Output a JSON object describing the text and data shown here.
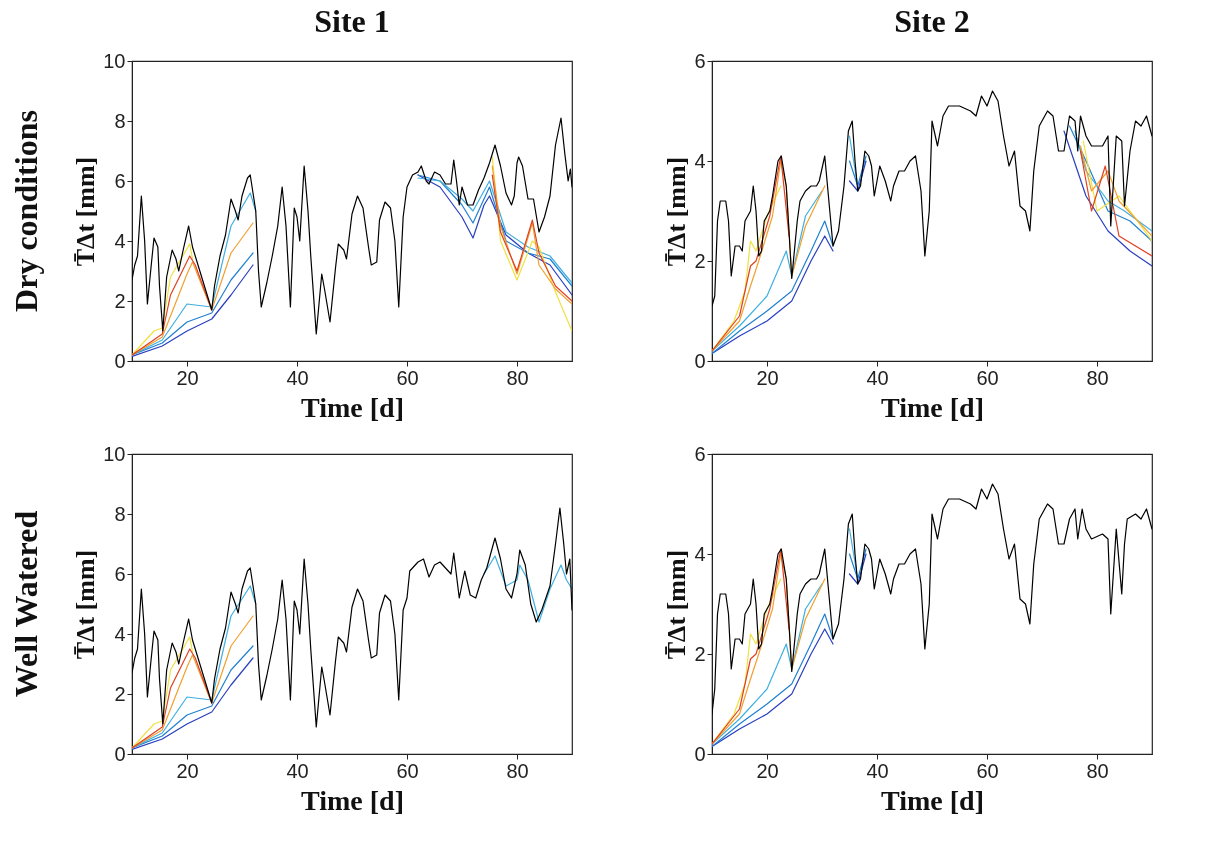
{
  "chart_data": [
    {
      "type": "line",
      "title": "Site 1",
      "annotations": [
        "Dry conditions"
      ],
      "xlabel": "Time [d]",
      "ylabel": "T̄Δt [mm]",
      "xlim": [
        10,
        90
      ],
      "xticks": [
        20,
        40,
        60,
        80
      ],
      "ylim": [
        0,
        10
      ],
      "yticks": [
        0,
        2,
        4,
        6,
        8,
        10
      ],
      "series": [
        {
          "color": "#2a3fc0",
          "x": [
            10,
            15.5,
            20,
            24.5,
            28,
            32
          ],
          "values": [
            0.15,
            0.5,
            1.0,
            1.4,
            2.2,
            3.2
          ]
        },
        {
          "color": "#2a3fc0",
          "x": [
            62,
            66,
            70,
            72,
            74,
            75,
            78,
            82,
            86,
            90
          ],
          "values": [
            6.2,
            5.8,
            4.8,
            4.1,
            5.2,
            5.5,
            4.2,
            3.6,
            3.2,
            2.2
          ]
        },
        {
          "color": "#2080d0",
          "x": [
            10,
            15.5,
            20,
            24.5,
            28,
            32
          ],
          "values": [
            0.2,
            0.6,
            1.3,
            1.6,
            2.7,
            3.6
          ]
        },
        {
          "color": "#2080d0",
          "x": [
            62,
            66,
            70,
            72,
            75,
            78,
            82,
            86,
            90
          ],
          "values": [
            6.2,
            6.0,
            5.2,
            4.6,
            5.8,
            4.0,
            3.6,
            3.4,
            2.5
          ]
        },
        {
          "color": "#40b0e0",
          "x": [
            10,
            15.5,
            20,
            24.5,
            28,
            31.5,
            32.5
          ],
          "values": [
            0.2,
            0.7,
            1.9,
            1.8,
            4.5,
            5.6,
            5.0
          ]
        },
        {
          "color": "#40b0e0",
          "x": [
            62,
            66,
            70,
            72,
            75,
            78,
            82,
            86,
            90
          ],
          "values": [
            6.1,
            6.0,
            5.4,
            5.0,
            6.0,
            4.3,
            3.8,
            3.5,
            2.6
          ]
        },
        {
          "color": "#f0e040",
          "x": [
            10,
            14,
            15.5,
            17,
            20.5,
            21
          ],
          "values": [
            0.2,
            1.0,
            1.1,
            2.8,
            3.9,
            3.4
          ]
        },
        {
          "color": "#f0e040",
          "x": [
            75.5,
            77,
            80,
            82.8,
            84,
            87,
            90
          ],
          "values": [
            6.8,
            4.0,
            2.7,
            4.0,
            3.8,
            2.3,
            1.0
          ]
        },
        {
          "color": "#f0a030",
          "x": [
            10,
            15.5,
            20,
            21,
            24.5,
            28,
            32
          ],
          "values": [
            0.2,
            0.8,
            2.9,
            3.3,
            1.7,
            3.6,
            4.6
          ]
        },
        {
          "color": "#f0a030",
          "x": [
            75.5,
            77,
            80,
            82.8,
            84,
            87,
            90
          ],
          "values": [
            6.5,
            4.5,
            2.9,
            4.6,
            3.2,
            2.4,
            1.9
          ]
        },
        {
          "color": "#e04020",
          "x": [
            10,
            15.5,
            17,
            20.5,
            21.5,
            24.5
          ],
          "values": [
            0.2,
            0.9,
            2.2,
            3.5,
            3.2,
            1.7
          ]
        },
        {
          "color": "#e04020",
          "x": [
            75.5,
            77,
            80,
            82.8,
            84,
            87,
            90
          ],
          "values": [
            6.2,
            4.3,
            3.0,
            4.7,
            3.6,
            2.5,
            2.0
          ]
        },
        {
          "color": "#000000",
          "x": [
            10,
            10.5,
            11,
            11.7,
            12.3,
            12.8,
            13.5,
            14,
            14.7,
            15,
            15.6,
            16.3,
            17.3,
            18,
            18.5,
            19.3,
            20.3,
            21,
            22,
            23,
            24,
            24.5,
            25,
            26,
            27,
            28,
            28.8,
            29.3,
            30,
            31,
            31.5,
            32.5,
            33,
            33.5,
            34.5,
            35.5,
            36.5,
            37.3,
            38,
            38.8,
            39.5,
            40,
            40.5,
            41.3,
            42,
            42.5,
            43.5,
            44.5,
            45,
            46,
            47,
            47.5,
            48.5,
            49,
            50,
            51,
            52,
            53,
            53.5,
            54.5,
            55,
            56,
            57,
            57.8,
            58.5,
            59.3,
            60,
            61,
            62,
            62.6,
            63.5,
            64,
            65,
            66,
            67,
            68,
            68.5,
            69,
            69.5,
            70,
            71,
            72,
            73,
            74,
            75,
            76,
            77,
            78,
            79,
            79.5,
            80,
            80.3,
            81,
            82,
            83,
            84,
            85,
            86,
            87,
            88,
            88.7,
            89.3,
            89.7,
            90
          ],
          "values": [
            2.7,
            3.2,
            3.5,
            5.5,
            4.0,
            1.9,
            3.2,
            4.1,
            3.8,
            2.5,
            1.0,
            2.8,
            3.7,
            3.4,
            3.0,
            3.7,
            4.5,
            3.8,
            3.2,
            2.6,
            2.0,
            1.7,
            2.5,
            3.5,
            4.2,
            5.4,
            5.0,
            4.7,
            5.5,
            6.1,
            6.2,
            5.0,
            3.0,
            1.8,
            2.6,
            3.5,
            4.5,
            5.8,
            4.5,
            1.8,
            5.1,
            4.8,
            4.0,
            6.5,
            5.0,
            3.5,
            0.9,
            2.9,
            2.4,
            1.3,
            3.1,
            3.9,
            3.7,
            3.4,
            4.9,
            5.5,
            5.1,
            3.8,
            3.2,
            3.3,
            4.7,
            5.3,
            5.1,
            4.0,
            1.8,
            4.8,
            5.8,
            6.2,
            6.3,
            6.5,
            6.0,
            5.9,
            6.3,
            6.2,
            5.9,
            5.9,
            6.7,
            6.0,
            5.2,
            5.8,
            5.2,
            5.2,
            5.7,
            6.1,
            6.6,
            7.2,
            6.5,
            5.6,
            5.2,
            5.5,
            6.6,
            6.8,
            6.5,
            5.4,
            5.4,
            4.3,
            4.8,
            5.5,
            7.2,
            8.1,
            6.9,
            6.0,
            6.4,
            5.8
          ]
        }
      ]
    },
    {
      "type": "line",
      "title": "Site 2",
      "xlabel": "Time [d]",
      "ylabel": "T̄Δt [mm]",
      "xlim": [
        10,
        90
      ],
      "xticks": [
        20,
        40,
        60,
        80
      ],
      "ylim": [
        0,
        6
      ],
      "yticks": [
        0,
        2,
        4,
        6
      ],
      "series": [
        {
          "color": "#2a3fc0",
          "x": [
            10,
            15,
            20,
            24.5,
            28,
            30.5,
            32
          ],
          "values": [
            0.15,
            0.5,
            0.8,
            1.2,
            2.0,
            2.5,
            2.2
          ]
        },
        {
          "color": "#2a3fc0",
          "x": [
            35,
            36.5,
            38
          ],
          "values": [
            3.6,
            3.4,
            4.0
          ]
        },
        {
          "color": "#2a3fc0",
          "x": [
            74,
            78,
            82,
            86,
            90
          ],
          "values": [
            4.6,
            3.3,
            2.6,
            2.2,
            1.9
          ]
        },
        {
          "color": "#2080d0",
          "x": [
            10,
            15,
            20,
            24.5,
            28,
            30.5,
            32
          ],
          "values": [
            0.15,
            0.6,
            1.0,
            1.4,
            2.2,
            2.8,
            2.3
          ]
        },
        {
          "color": "#2080d0",
          "x": [
            35,
            36.5,
            38
          ],
          "values": [
            4.0,
            3.5,
            4.1
          ]
        },
        {
          "color": "#2080d0",
          "x": [
            75,
            78,
            82,
            86,
            90
          ],
          "values": [
            4.7,
            4.0,
            3.0,
            2.8,
            2.4
          ]
        },
        {
          "color": "#40b0e0",
          "x": [
            10,
            15,
            20,
            23.5,
            24.5,
            27,
            30
          ],
          "values": [
            0.2,
            0.7,
            1.3,
            2.2,
            1.7,
            2.9,
            3.4
          ]
        },
        {
          "color": "#40b0e0",
          "x": [
            35,
            36.5
          ],
          "values": [
            4.5,
            3.5
          ]
        },
        {
          "color": "#40b0e0",
          "x": [
            76,
            78,
            82,
            85,
            90
          ],
          "values": [
            4.6,
            3.8,
            3.2,
            3.0,
            2.6
          ]
        },
        {
          "color": "#f0e040",
          "x": [
            10,
            14,
            16,
            17,
            18,
            20,
            22.5
          ],
          "values": [
            0.2,
            0.8,
            1.4,
            2.4,
            2.2,
            2.9,
            3.5
          ]
        },
        {
          "color": "#f0e040",
          "x": [
            77.5,
            80,
            84,
            90
          ],
          "values": [
            4.4,
            3.0,
            3.3,
            2.4
          ]
        },
        {
          "color": "#f0a030",
          "x": [
            10,
            15,
            17,
            18.5,
            21,
            22.5,
            23.5,
            24.5,
            27,
            30.5
          ],
          "values": [
            0.2,
            0.8,
            1.5,
            2.0,
            2.9,
            4.0,
            3.5,
            1.7,
            2.7,
            3.5
          ]
        },
        {
          "color": "#f0a030",
          "x": [
            77,
            79,
            82,
            84,
            90
          ],
          "values": [
            4.3,
            3.4,
            3.8,
            3.2,
            2.5
          ]
        },
        {
          "color": "#e04020",
          "x": [
            10,
            15,
            17,
            18,
            20.5,
            22.5,
            24
          ],
          "values": [
            0.2,
            0.9,
            1.9,
            2.0,
            2.9,
            4.1,
            2.5
          ]
        },
        {
          "color": "#e04020",
          "x": [
            77,
            79,
            81.5,
            84,
            90
          ],
          "values": [
            4.2,
            3.0,
            3.9,
            2.5,
            2.1
          ]
        },
        {
          "color": "#000000",
          "x": [
            10,
            10.5,
            11,
            11.5,
            12.5,
            13,
            13.5,
            14.2,
            15,
            15.5,
            16,
            17,
            17.5,
            18,
            18.5,
            19,
            19.5,
            20.5,
            21,
            22,
            22.6,
            23.5,
            24,
            24.5,
            25.5,
            26,
            27,
            28,
            29,
            29.5,
            30.5,
            31,
            32,
            33,
            34,
            34.8,
            35.5,
            36,
            36.5,
            37,
            37.8,
            38.5,
            39,
            39.5,
            40,
            40.5,
            41.5,
            42.5,
            43,
            44,
            45,
            46,
            47,
            48,
            48.7,
            49.5,
            50,
            51,
            52,
            53,
            55,
            57,
            58,
            59,
            60,
            61,
            62,
            63,
            64,
            65,
            66,
            67,
            67.8,
            68.5,
            69.5,
            71,
            72,
            73,
            74,
            75,
            76,
            76.5,
            77,
            78,
            79,
            81,
            82,
            82.5,
            83.5,
            84.5,
            85,
            86,
            87,
            88,
            89,
            90
          ],
          "values": [
            1.1,
            1.3,
            2.8,
            3.2,
            3.2,
            2.8,
            1.7,
            2.3,
            2.3,
            2.2,
            2.8,
            3.0,
            3.5,
            3.0,
            2.1,
            2.2,
            2.8,
            3.0,
            3.3,
            4.0,
            4.1,
            3.5,
            2.6,
            1.65,
            2.8,
            3.2,
            3.4,
            3.5,
            3.5,
            3.6,
            4.1,
            3.5,
            2.3,
            2.6,
            3.5,
            4.6,
            4.8,
            4.0,
            3.4,
            3.5,
            4.2,
            4.1,
            3.9,
            3.3,
            3.6,
            3.9,
            3.6,
            3.2,
            3.5,
            3.8,
            3.8,
            4.0,
            4.1,
            3.4,
            2.1,
            3.0,
            4.8,
            4.3,
            4.9,
            5.1,
            5.1,
            5.0,
            4.9,
            5.3,
            5.1,
            5.4,
            5.2,
            4.5,
            3.9,
            4.2,
            3.1,
            3.0,
            2.6,
            3.8,
            4.7,
            5.0,
            4.9,
            4.2,
            4.2,
            4.9,
            4.8,
            4.2,
            4.9,
            4.5,
            4.3,
            4.3,
            4.5,
            2.7,
            4.5,
            4.4,
            3.1,
            4.2,
            4.8,
            4.7,
            4.9,
            4.5
          ]
        }
      ]
    },
    {
      "type": "line",
      "annotations": [
        "Well Watered"
      ],
      "xlabel": "Time [d]",
      "ylabel": "T̄Δt [mm]",
      "xlim": [
        10,
        90
      ],
      "xticks": [
        20,
        40,
        60,
        80
      ],
      "ylim": [
        0,
        10
      ],
      "yticks": [
        0,
        2,
        4,
        6,
        8,
        10
      ],
      "series": [
        {
          "color": "#2a3fc0",
          "x": [
            10,
            15.5,
            20,
            24.5,
            28,
            32
          ],
          "values": [
            0.15,
            0.5,
            1.0,
            1.4,
            2.3,
            3.2
          ]
        },
        {
          "color": "#2080d0",
          "x": [
            10,
            15.5,
            20,
            24.5,
            28,
            32
          ],
          "values": [
            0.2,
            0.6,
            1.3,
            1.6,
            2.8,
            3.6
          ]
        },
        {
          "color": "#40b0e0",
          "x": [
            10,
            15.5,
            20,
            24.5,
            28,
            31.5,
            32.5
          ],
          "values": [
            0.2,
            0.7,
            1.9,
            1.8,
            4.6,
            5.6,
            5.0
          ]
        },
        {
          "color": "#40b0e0",
          "x": [
            74,
            76,
            78,
            80,
            80.5,
            82,
            84,
            86,
            88,
            89,
            90
          ],
          "values": [
            6.0,
            6.6,
            5.6,
            5.8,
            6.3,
            5.8,
            4.4,
            5.5,
            6.3,
            5.8,
            5.5
          ]
        },
        {
          "color": "#f0e040",
          "x": [
            10,
            14,
            15.5,
            17,
            20.5,
            21
          ],
          "values": [
            0.2,
            1.0,
            1.1,
            2.8,
            3.9,
            3.4
          ]
        },
        {
          "color": "#f0a030",
          "x": [
            10,
            15.5,
            20,
            21,
            24.5,
            28,
            32
          ],
          "values": [
            0.2,
            0.8,
            2.9,
            3.3,
            1.7,
            3.6,
            4.6
          ]
        },
        {
          "color": "#e04020",
          "x": [
            10,
            15.5,
            17,
            20.5,
            21.5,
            24.5
          ],
          "values": [
            0.2,
            0.9,
            2.2,
            3.5,
            3.2,
            1.7
          ]
        },
        {
          "color": "#000000",
          "x": [
            10,
            10.5,
            11,
            11.7,
            12.3,
            12.8,
            13.5,
            14,
            14.7,
            15,
            15.6,
            16.3,
            17.3,
            18,
            18.5,
            19.3,
            20.3,
            21,
            22,
            23,
            24,
            24.5,
            25,
            26,
            27,
            28,
            28.8,
            29.3,
            30,
            31,
            31.5,
            32.5,
            33,
            33.5,
            34.5,
            35.5,
            36.5,
            37.3,
            38,
            38.8,
            39.5,
            40,
            40.5,
            41.3,
            42,
            42.5,
            43.5,
            44.5,
            45,
            46,
            47,
            47.5,
            48.5,
            49,
            50,
            51,
            52,
            53,
            53.5,
            54.5,
            55,
            56,
            57,
            57.8,
            58.5,
            59.3,
            60,
            60.5,
            62,
            63,
            64,
            65,
            66,
            67,
            68,
            68.5,
            69.5,
            70.5,
            71.5,
            72.5,
            73.5,
            74.5,
            76,
            77,
            78,
            79,
            80,
            80.5,
            81.5,
            82.5,
            83.5,
            84.5,
            86,
            87,
            87.8,
            88.5,
            89,
            89.6,
            90
          ],
          "values": [
            2.7,
            3.2,
            3.5,
            5.5,
            4.0,
            1.9,
            3.2,
            4.1,
            3.8,
            2.5,
            1.0,
            2.8,
            3.7,
            3.4,
            3.0,
            3.7,
            4.5,
            3.8,
            3.2,
            2.6,
            2.0,
            1.7,
            2.5,
            3.5,
            4.2,
            5.4,
            5.0,
            4.7,
            5.5,
            6.1,
            6.2,
            5.0,
            3.0,
            1.8,
            2.6,
            3.5,
            4.5,
            5.8,
            4.5,
            1.8,
            5.1,
            4.8,
            4.0,
            6.5,
            5.0,
            3.5,
            0.9,
            2.9,
            2.4,
            1.3,
            3.1,
            3.9,
            3.7,
            3.4,
            4.9,
            5.5,
            5.1,
            3.8,
            3.2,
            3.3,
            4.7,
            5.3,
            5.1,
            4.0,
            1.8,
            4.8,
            5.2,
            6.1,
            6.4,
            6.5,
            5.9,
            6.3,
            6.4,
            6.2,
            6.0,
            6.7,
            5.2,
            6.1,
            5.3,
            5.2,
            5.8,
            6.2,
            7.2,
            6.5,
            5.5,
            5.2,
            6.0,
            6.8,
            6.3,
            5.0,
            4.4,
            4.8,
            5.6,
            7.0,
            8.2,
            7.0,
            6.0,
            6.5,
            4.8
          ]
        }
      ]
    },
    {
      "type": "line",
      "xlabel": "Time [d]",
      "ylabel": "T̄Δt [mm]",
      "xlim": [
        10,
        90
      ],
      "xticks": [
        20,
        40,
        60,
        80
      ],
      "ylim": [
        0,
        6
      ],
      "yticks": [
        0,
        2,
        4,
        6
      ],
      "series": [
        {
          "color": "#2a3fc0",
          "x": [
            10,
            15,
            20,
            24.5,
            28,
            30.5,
            32
          ],
          "values": [
            0.15,
            0.5,
            0.8,
            1.2,
            2.0,
            2.5,
            2.2
          ]
        },
        {
          "color": "#2a3fc0",
          "x": [
            35,
            36.5,
            38
          ],
          "values": [
            3.6,
            3.4,
            4.0
          ]
        },
        {
          "color": "#2080d0",
          "x": [
            10,
            15,
            20,
            24.5,
            28,
            30.5,
            32
          ],
          "values": [
            0.15,
            0.6,
            1.0,
            1.4,
            2.2,
            2.8,
            2.3
          ]
        },
        {
          "color": "#2080d0",
          "x": [
            35,
            36.5,
            38
          ],
          "values": [
            4.0,
            3.5,
            4.1
          ]
        },
        {
          "color": "#40b0e0",
          "x": [
            10,
            15,
            20,
            23.5,
            24.5,
            27,
            30
          ],
          "values": [
            0.2,
            0.7,
            1.3,
            2.2,
            1.7,
            2.9,
            3.4
          ]
        },
        {
          "color": "#40b0e0",
          "x": [
            35,
            36.5
          ],
          "values": [
            4.5,
            3.5
          ]
        },
        {
          "color": "#f0e040",
          "x": [
            10,
            14,
            16,
            17,
            18,
            20,
            22.5
          ],
          "values": [
            0.2,
            0.8,
            1.4,
            2.4,
            2.2,
            2.9,
            3.5
          ]
        },
        {
          "color": "#f0a030",
          "x": [
            10,
            15,
            17,
            18.5,
            21,
            22.5,
            23.5,
            24.5,
            27,
            30.5
          ],
          "values": [
            0.2,
            0.8,
            1.5,
            2.0,
            2.9,
            4.0,
            3.5,
            1.7,
            2.7,
            3.5
          ]
        },
        {
          "color": "#e04020",
          "x": [
            10,
            15,
            17,
            18,
            20.5,
            22.5,
            24
          ],
          "values": [
            0.2,
            0.9,
            1.9,
            2.0,
            2.9,
            4.1,
            2.5
          ]
        },
        {
          "color": "#000000",
          "x": [
            10,
            10.5,
            11,
            11.5,
            12.5,
            13,
            13.5,
            14.2,
            15,
            15.5,
            16,
            17,
            17.5,
            18,
            18.5,
            19,
            19.5,
            20.5,
            21,
            22,
            22.6,
            23.5,
            24,
            24.5,
            25.5,
            26,
            27,
            28,
            29,
            29.5,
            30.5,
            31,
            32,
            33,
            34,
            34.8,
            35.5,
            36,
            36.5,
            37,
            37.8,
            38.5,
            39,
            39.5,
            40,
            40.5,
            41.5,
            42.5,
            43,
            44,
            45,
            46,
            47,
            48,
            48.7,
            49.5,
            50,
            51,
            52,
            53,
            55,
            57,
            58,
            59,
            60,
            61,
            62,
            63,
            64,
            65,
            66,
            67,
            67.8,
            68.5,
            69.5,
            71,
            72,
            73,
            74,
            75,
            76,
            76.5,
            77.3,
            78,
            79,
            81,
            82,
            82.5,
            83.5,
            84.5,
            85,
            85.5,
            87,
            88,
            89,
            90
          ],
          "values": [
            0.8,
            1.3,
            2.8,
            3.2,
            3.2,
            2.8,
            1.7,
            2.3,
            2.3,
            2.2,
            2.8,
            3.0,
            3.5,
            3.0,
            2.1,
            2.2,
            2.8,
            3.0,
            3.3,
            4.0,
            4.1,
            3.5,
            2.6,
            1.65,
            2.8,
            3.2,
            3.4,
            3.5,
            3.5,
            3.6,
            4.1,
            3.5,
            2.3,
            2.6,
            3.5,
            4.6,
            4.8,
            4.0,
            3.4,
            3.5,
            4.2,
            4.1,
            3.9,
            3.3,
            3.6,
            3.9,
            3.6,
            3.2,
            3.5,
            3.8,
            3.8,
            4.0,
            4.1,
            3.4,
            2.1,
            3.0,
            4.8,
            4.3,
            4.9,
            5.1,
            5.1,
            5.0,
            4.9,
            5.3,
            5.1,
            5.4,
            5.2,
            4.5,
            3.9,
            4.2,
            3.1,
            3.0,
            2.6,
            3.8,
            4.7,
            5.0,
            4.9,
            4.2,
            4.2,
            4.7,
            4.9,
            4.3,
            4.9,
            4.5,
            4.3,
            4.4,
            4.3,
            2.8,
            4.5,
            3.2,
            4.2,
            4.7,
            4.8,
            4.7,
            4.9,
            4.5
          ]
        }
      ]
    }
  ]
}
